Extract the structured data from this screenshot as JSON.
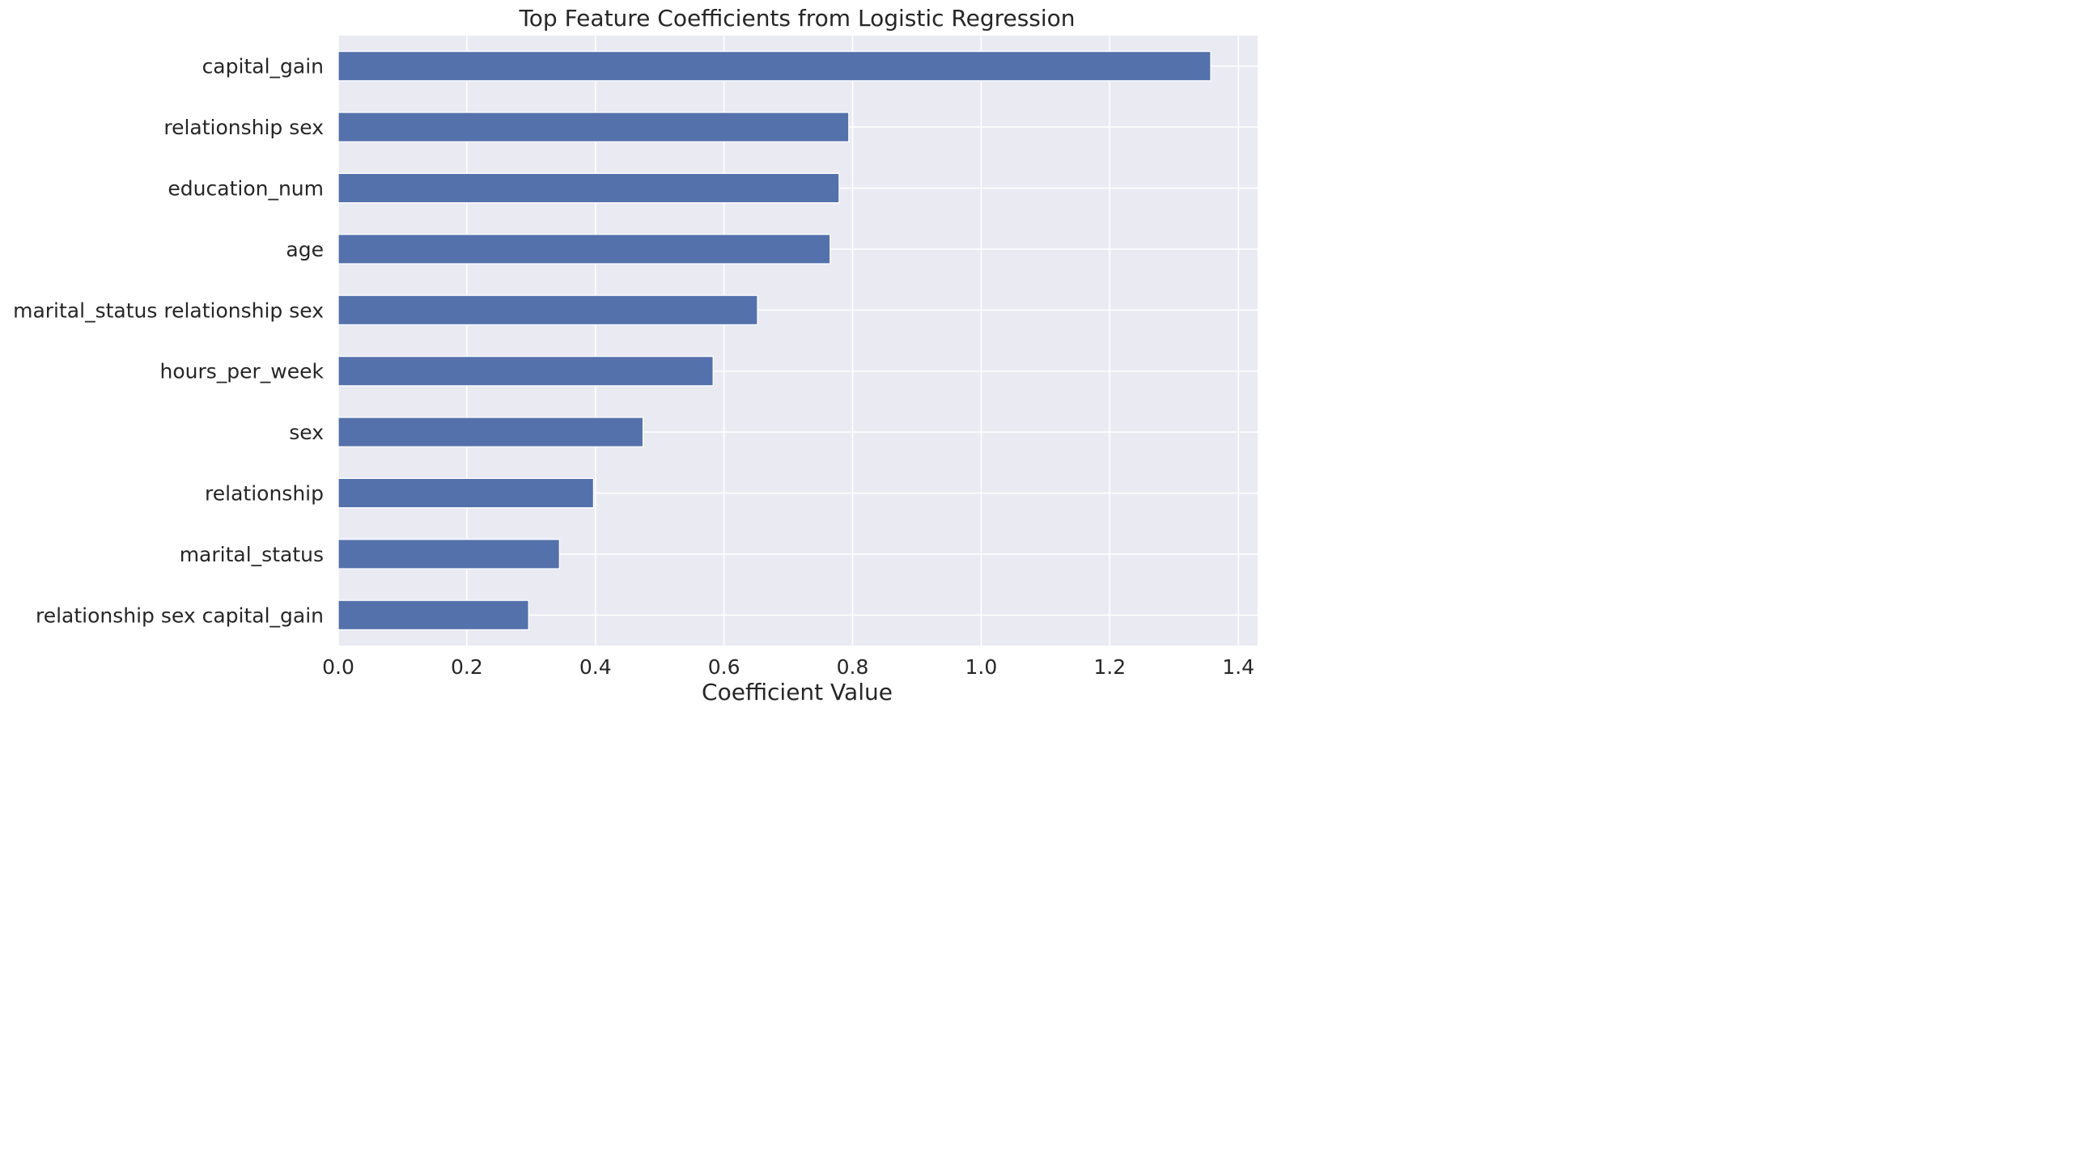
{
  "chart_data": {
    "type": "bar",
    "orientation": "horizontal",
    "title": "Top Feature Coefficients from Logistic Regression",
    "xlabel": "Coefficient Value",
    "ylabel": "",
    "categories": [
      "capital_gain",
      "relationship sex",
      "education_num",
      "age",
      "marital_status relationship sex",
      "hours_per_week",
      "sex",
      "relationship",
      "marital_status",
      "relationship sex capital_gain"
    ],
    "values": [
      1.357,
      0.794,
      0.779,
      0.765,
      0.652,
      0.583,
      0.474,
      0.397,
      0.344,
      0.296
    ],
    "xlim": [
      0.0,
      1.43
    ],
    "xticks": [
      "0.0",
      "0.2",
      "0.4",
      "0.6",
      "0.8",
      "1.0",
      "1.2",
      "1.4"
    ],
    "grid": true,
    "bar_color": "#5471ab",
    "background_color": "#eaeaf2"
  }
}
